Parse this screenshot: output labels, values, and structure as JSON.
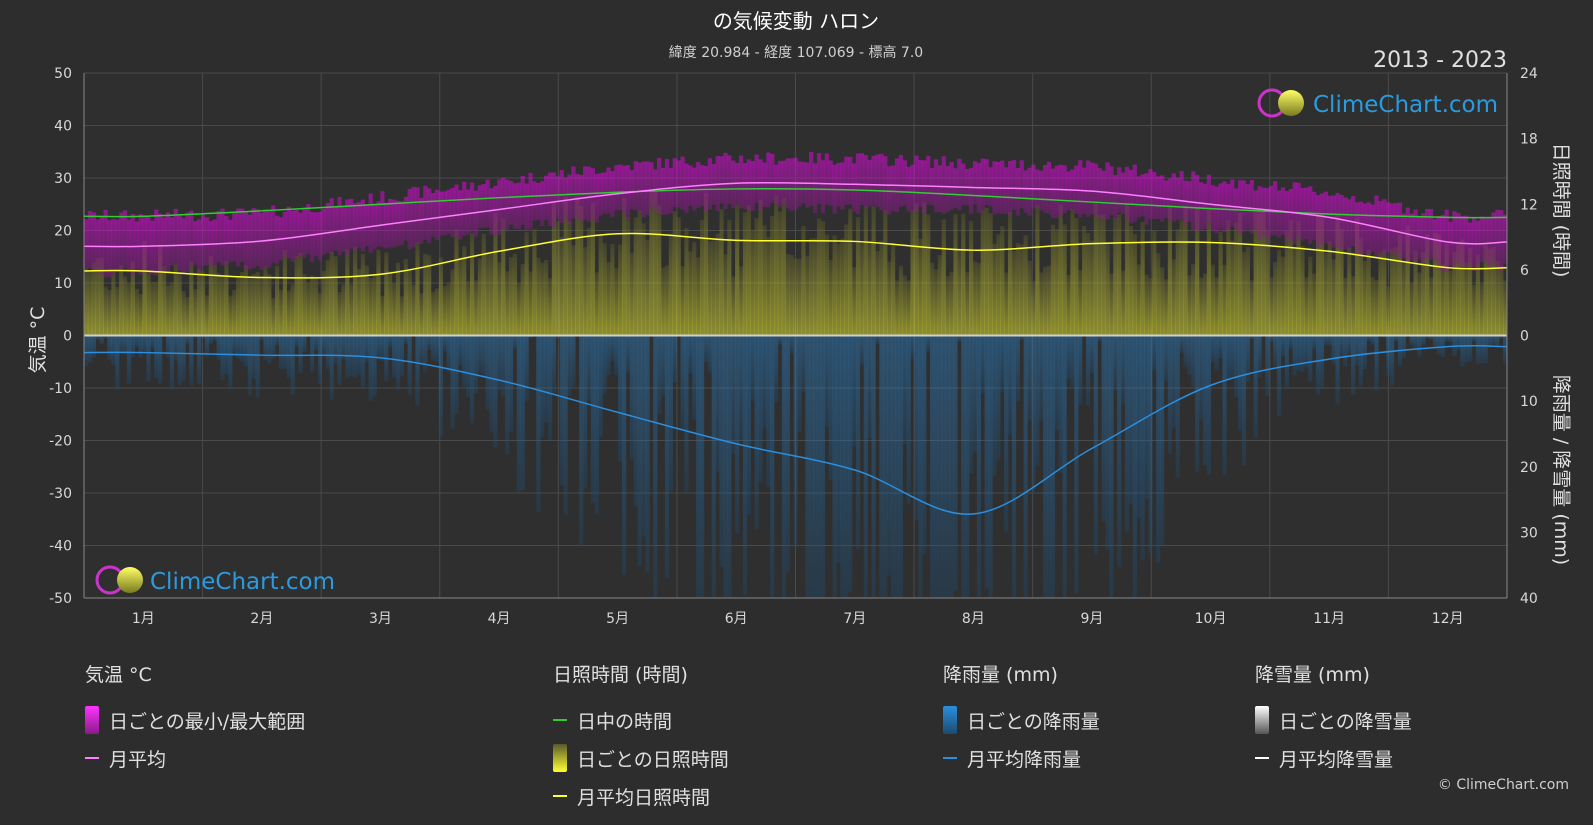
{
  "header": {
    "title": "の気候変動 ハロン",
    "subtitle": "緯度 20.984 - 経度 107.069 - 標高 7.0",
    "years": "2013 - 2023"
  },
  "watermark": {
    "text": "ClimeChart.com",
    "copyright": "© ClimeChart.com"
  },
  "axes": {
    "left_label": "気温 °C",
    "right_top_label": "日照時間 (時間)",
    "right_bottom_label": "降雨量 / 降雪量 (mm)"
  },
  "legend": {
    "temperature": {
      "title": "気温 °C",
      "range_label": "日ごとの最小/最大範囲",
      "avg_label": "月平均"
    },
    "sunshine": {
      "title": "日照時間 (時間)",
      "daylight_label": "日中の時間",
      "daily_label": "日ごとの日照時間",
      "avg_label": "月平均日照時間"
    },
    "rain": {
      "title": "降雨量 (mm)",
      "daily_label": "日ごとの降雨量",
      "avg_label": "月平均降雨量"
    },
    "snow": {
      "title": "降雪量 (mm)",
      "daily_label": "日ごとの降雪量",
      "avg_label": "月平均降雪量"
    }
  },
  "colors": {
    "temp_range": "#e020e0",
    "temp_avg": "#ff80ff",
    "daylight": "#33cc33",
    "sunshine_fill": "#8c8c3a",
    "sunshine_avg": "#ffff33",
    "rain_fill": "#1d5a8c",
    "rain_avg": "#2a8fe0",
    "snow": "#ffffff"
  },
  "chart_data": {
    "type": "line",
    "categories": [
      "1月",
      "2月",
      "3月",
      "4月",
      "5月",
      "6月",
      "7月",
      "8月",
      "9月",
      "10月",
      "11月",
      "12月"
    ],
    "y_left": {
      "ylim": [
        -50,
        50
      ],
      "ticks": [
        50,
        40,
        30,
        20,
        10,
        0,
        -10,
        -20,
        -30,
        -40,
        -50
      ]
    },
    "y_right_sunshine": {
      "ylim": [
        0,
        24
      ],
      "ticks": [
        24,
        18,
        12,
        6,
        0
      ]
    },
    "y_right_precip": {
      "ylim": [
        0,
        40
      ],
      "ticks": [
        0,
        10,
        20,
        30,
        40
      ]
    },
    "series": [
      {
        "name": "月平均",
        "axis": "temperature",
        "values": [
          17.0,
          18.0,
          21.0,
          24.0,
          27.0,
          29.0,
          28.8,
          28.2,
          27.5,
          25.0,
          22.5,
          17.8
        ]
      },
      {
        "axis": "temperature_min",
        "values": [
          13.0,
          14.5,
          17.5,
          21.0,
          24.0,
          25.5,
          25.0,
          25.0,
          24.0,
          21.5,
          18.0,
          14.0
        ]
      },
      {
        "axis": "temperature_max",
        "values": [
          21.5,
          22.0,
          25.0,
          28.0,
          31.0,
          32.5,
          32.5,
          31.5,
          31.0,
          28.5,
          26.0,
          21.5
        ]
      },
      {
        "name": "日中の時間",
        "axis": "sunshine",
        "values": [
          10.9,
          11.4,
          12.0,
          12.6,
          13.1,
          13.4,
          13.3,
          12.8,
          12.2,
          11.6,
          11.1,
          10.8
        ]
      },
      {
        "name": "月平均日照時間",
        "axis": "sunshine",
        "values": [
          5.9,
          5.3,
          5.6,
          7.7,
          9.3,
          8.7,
          8.6,
          7.8,
          8.4,
          8.5,
          7.7,
          6.2
        ]
      },
      {
        "name": "月平均降雨量",
        "axis": "precipitation",
        "values": [
          2.6,
          3.0,
          3.4,
          6.8,
          11.7,
          16.5,
          20.5,
          27.2,
          17.2,
          7.6,
          3.6,
          1.7
        ]
      },
      {
        "name": "月平均降雪量",
        "axis": "precipitation",
        "values": [
          0,
          0,
          0,
          0,
          0,
          0,
          0,
          0,
          0,
          0,
          0,
          0
        ]
      }
    ]
  }
}
